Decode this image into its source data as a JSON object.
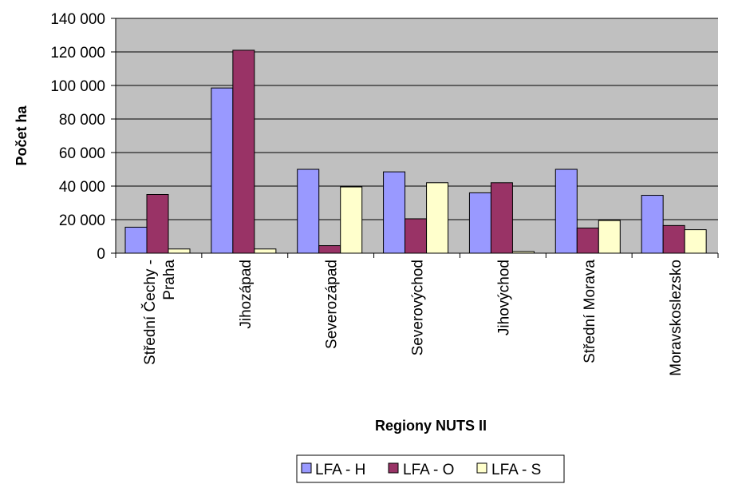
{
  "chart_data": {
    "type": "bar",
    "title": "",
    "xlabel": "Regiony NUTS II",
    "ylabel": "Počet ha",
    "ylim": [
      0,
      140000
    ],
    "yticks": [
      0,
      20000,
      40000,
      60000,
      80000,
      100000,
      120000,
      140000
    ],
    "ytick_labels": [
      "0",
      "20 000",
      "40 000",
      "60 000",
      "80 000",
      "100 000",
      "120 000",
      "140 000"
    ],
    "categories": [
      "Střední Čechy - Praha",
      "Jihozápad",
      "Severozápad",
      "Severovýchod",
      "Jihovýchod",
      "Střední Morava",
      "Moravskoslezsko"
    ],
    "category_label_lines": [
      [
        "Střední Čechy -",
        "Praha"
      ],
      [
        "Jihozápad"
      ],
      [
        "Severozápad"
      ],
      [
        "Severovýchod"
      ],
      [
        "Jihovýchod"
      ],
      [
        "Střední Morava"
      ],
      [
        "Moravskoslezsko"
      ]
    ],
    "series": [
      {
        "name": "LFA - H",
        "color": "#9999ff",
        "values": [
          15500,
          98500,
          50000,
          48500,
          36000,
          50000,
          34500
        ]
      },
      {
        "name": "LFA - O",
        "color": "#993366",
        "values": [
          35000,
          121000,
          4500,
          20500,
          42000,
          15000,
          16500
        ]
      },
      {
        "name": "LFA - S",
        "color": "#ffffcc",
        "values": [
          2500,
          2500,
          39500,
          42000,
          1000,
          19500,
          14000
        ]
      }
    ],
    "plot_background": "#c0c0c0",
    "grid": true,
    "legend_position": "bottom"
  }
}
